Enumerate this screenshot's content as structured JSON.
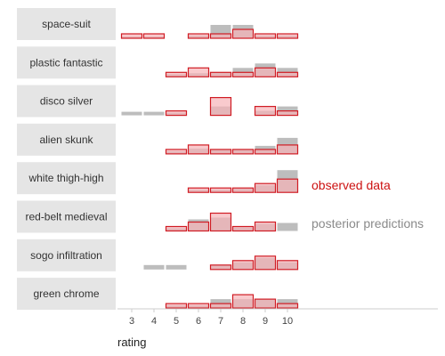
{
  "chart_data": {
    "type": "bar",
    "xlabel": "rating",
    "x_ticks": [
      3,
      4,
      5,
      6,
      7,
      8,
      9,
      10
    ],
    "legend": {
      "observed": "observed data",
      "posterior": "posterior predictions"
    },
    "colors": {
      "observed_fill": "#f7b3b8",
      "observed_stroke": "#d01c24",
      "posterior_fill": "#bdbdbd",
      "strip_bg": "#e5e5e5",
      "axis": "#cccccc"
    },
    "panels": [
      {
        "name": "space-suit",
        "observed": {
          "3": 1,
          "4": 1,
          "6": 1,
          "7": 1,
          "8": 2,
          "9": 1,
          "10": 1
        },
        "posterior": {
          "3": 0.4,
          "4": 0.4,
          "6": 0.6,
          "7": 3,
          "8": 3,
          "9": 0.6,
          "10": 0.6
        }
      },
      {
        "name": "plastic fantastic",
        "observed": {
          "5": 1,
          "6": 2,
          "7": 1,
          "8": 1,
          "9": 2,
          "10": 1
        },
        "posterior": {
          "5": 0.6,
          "6": 0.8,
          "7": 1,
          "8": 2,
          "9": 3,
          "10": 2
        }
      },
      {
        "name": "disco silver",
        "observed": {
          "5": 1,
          "7": 4,
          "9": 2,
          "10": 1
        },
        "posterior": {
          "3": 0.8,
          "4": 0.8,
          "5": 0.6,
          "7": 2,
          "9": 1,
          "10": 2
        }
      },
      {
        "name": "alien skunk",
        "observed": {
          "5": 1,
          "6": 2,
          "7": 1,
          "8": 1,
          "9": 1,
          "10": 2
        },
        "posterior": {
          "5": 0.6,
          "6": 1.2,
          "7": 1,
          "8": 1,
          "9": 1.8,
          "10": 3.6
        }
      },
      {
        "name": "white thigh-high",
        "observed": {
          "6": 1,
          "7": 1,
          "8": 1,
          "9": 2,
          "10": 3
        },
        "posterior": {
          "6": 0.6,
          "7": 0.6,
          "8": 0.8,
          "9": 1.6,
          "10": 5
        }
      },
      {
        "name": "red-belt medieval",
        "observed": {
          "5": 1,
          "6": 2,
          "7": 4,
          "8": 1,
          "9": 2
        },
        "posterior": {
          "5": 0.6,
          "6": 2.6,
          "7": 3,
          "8": 0.8,
          "9": 1.6,
          "10": 1.8
        }
      },
      {
        "name": "sogo infiltration",
        "observed": {
          "7": 1,
          "8": 2,
          "9": 3,
          "10": 2
        },
        "posterior": {
          "4": 1,
          "5": 1,
          "7": 1,
          "8": 1.6,
          "9": 2.6,
          "10": 1.6
        }
      },
      {
        "name": "green chrome",
        "observed": {
          "5": 1,
          "6": 1,
          "7": 1,
          "8": 3,
          "9": 2,
          "10": 1
        },
        "posterior": {
          "5": 0.6,
          "6": 0.6,
          "7": 2,
          "8": 2,
          "9": 2,
          "10": 2
        }
      }
    ]
  }
}
